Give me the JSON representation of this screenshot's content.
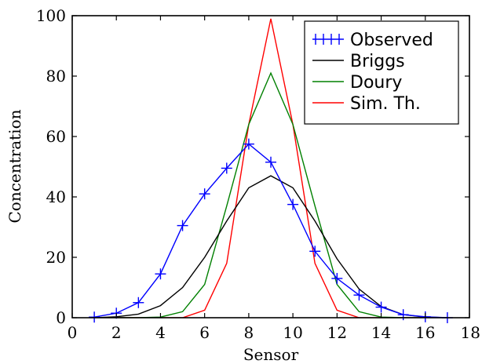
{
  "chart_data": {
    "type": "line",
    "title": "",
    "xlabel": "Sensor",
    "ylabel": "Concentration",
    "xlim": [
      0,
      18
    ],
    "ylim": [
      0,
      100
    ],
    "xticks": [
      0,
      2,
      4,
      6,
      8,
      10,
      12,
      14,
      16,
      18
    ],
    "yticks": [
      0,
      20,
      40,
      60,
      80,
      100
    ],
    "grid": false,
    "legend_position": "top-right",
    "series": [
      {
        "name": "Observed",
        "color": "#0000ff",
        "marker": "plus",
        "x": [
          1,
          2,
          3,
          4,
          5,
          6,
          7,
          8,
          9,
          10,
          11,
          12,
          13,
          14,
          15,
          16,
          17
        ],
        "y": [
          0.2,
          1.5,
          5,
          14.5,
          30.5,
          41,
          49.5,
          57.5,
          51.5,
          37.5,
          22,
          13,
          7.5,
          3.5,
          1,
          0.3,
          0
        ]
      },
      {
        "name": "Briggs",
        "color": "#000000",
        "marker": "none",
        "x": [
          1,
          2,
          3,
          4,
          5,
          6,
          7,
          8,
          9,
          10,
          11,
          12,
          13,
          14,
          15,
          16,
          17
        ],
        "y": [
          0,
          0.3,
          1.2,
          4,
          10,
          20,
          32,
          43,
          47,
          43,
          32,
          19.5,
          9.5,
          3.7,
          1,
          0.2,
          0
        ]
      },
      {
        "name": "Doury",
        "color": "#008000",
        "marker": "none",
        "x": [
          1,
          2,
          3,
          4,
          5,
          6,
          7,
          8,
          9,
          10,
          11,
          12,
          13,
          14,
          15,
          16,
          17
        ],
        "y": [
          0,
          0,
          0,
          0.2,
          2,
          11,
          37,
          64,
          81,
          64,
          37,
          11,
          2,
          0.2,
          0,
          0,
          0
        ]
      },
      {
        "name": "Sim. Th.",
        "color": "#ff0000",
        "marker": "none",
        "x": [
          1,
          2,
          3,
          4,
          5,
          6,
          7,
          8,
          9,
          10,
          11,
          12,
          13,
          14,
          15,
          16,
          17
        ],
        "y": [
          0,
          0,
          0,
          0,
          0,
          2.5,
          18,
          64,
          99,
          64,
          18,
          2.5,
          0,
          0,
          0,
          0,
          0
        ]
      }
    ]
  }
}
